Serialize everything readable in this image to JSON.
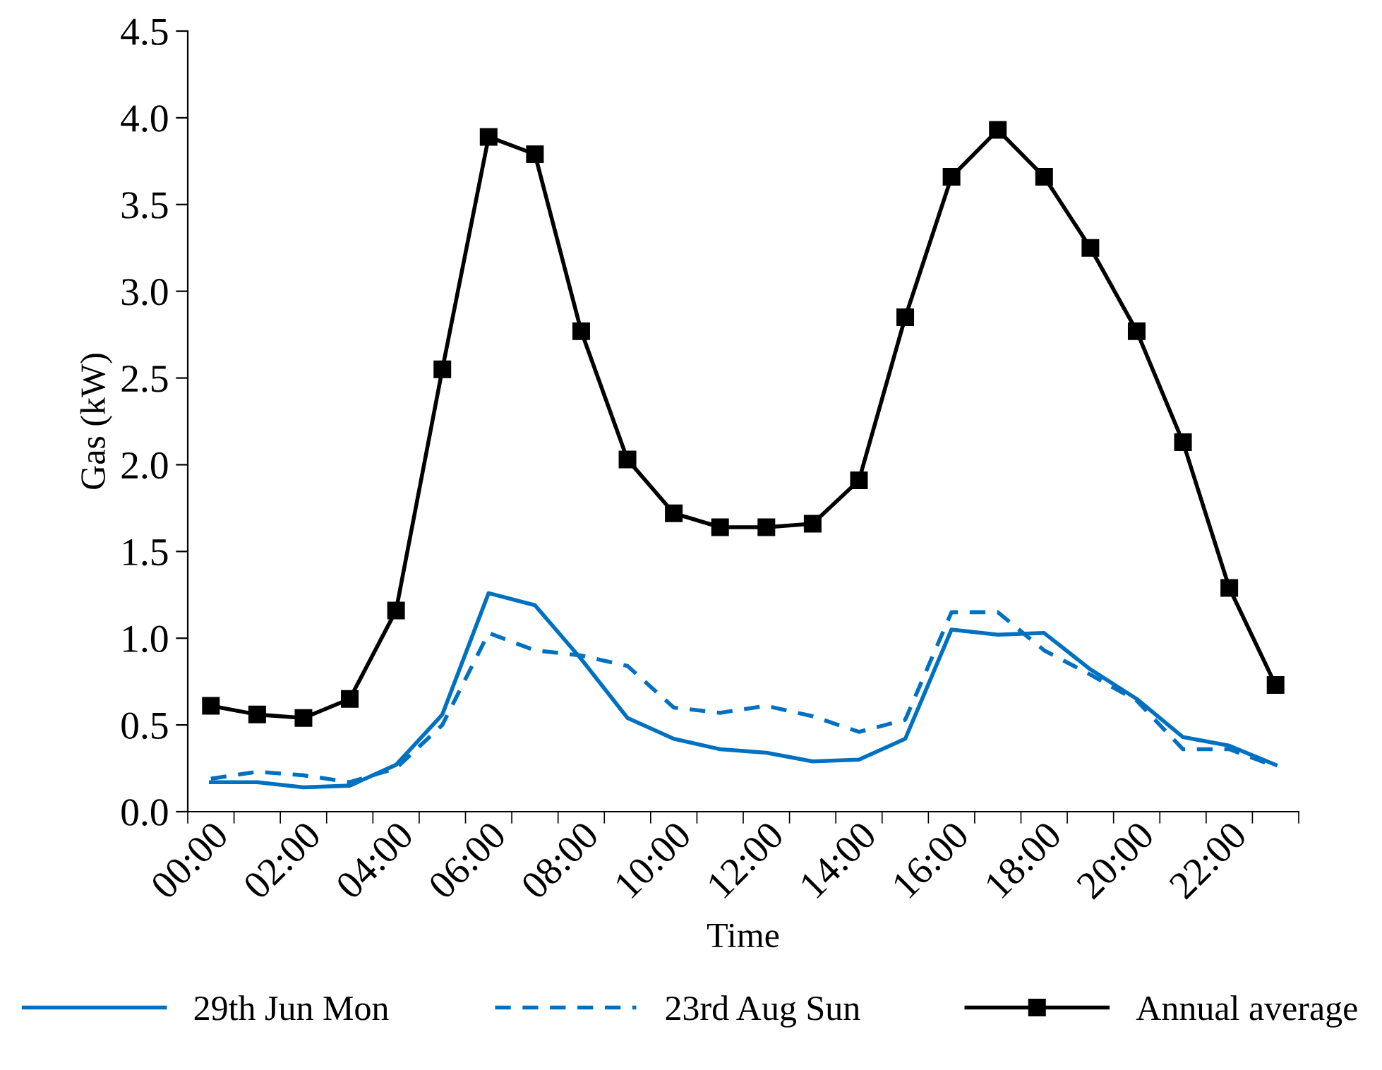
{
  "chart_data": {
    "type": "line",
    "xlabel": "Time",
    "ylabel": "Gas (kW)",
    "categories": [
      "00:00",
      null,
      "02:00",
      null,
      "04:00",
      null,
      "06:00",
      null,
      "08:00",
      null,
      "10:00",
      null,
      "12:00",
      null,
      "14:00",
      null,
      "16:00",
      null,
      "18:00",
      null,
      "20:00",
      null,
      "22:00",
      null
    ],
    "series": [
      {
        "name": "29th Jun Mon",
        "color": "#0070c0",
        "line_style": "solid",
        "marker": "none",
        "values": [
          0.17,
          0.17,
          0.14,
          0.15,
          0.27,
          0.56,
          1.26,
          1.19,
          0.88,
          0.54,
          0.42,
          0.36,
          0.34,
          0.29,
          0.3,
          0.42,
          1.05,
          1.02,
          1.03,
          0.82,
          0.65,
          0.43,
          0.38,
          0.27
        ]
      },
      {
        "name": "23rd Aug Sun",
        "color": "#0070c0",
        "line_style": "dashed",
        "marker": "none",
        "values": [
          0.19,
          0.23,
          0.21,
          0.17,
          0.25,
          0.5,
          1.03,
          0.93,
          0.9,
          0.84,
          0.6,
          0.57,
          0.61,
          0.55,
          0.46,
          0.53,
          1.15,
          1.15,
          0.93,
          0.79,
          0.64,
          0.36,
          0.36,
          0.26
        ]
      },
      {
        "name": "Annual average",
        "color": "#000000",
        "line_style": "solid",
        "marker": "square",
        "values": [
          0.61,
          0.56,
          0.54,
          0.65,
          1.16,
          2.55,
          3.89,
          3.79,
          2.77,
          2.03,
          1.72,
          1.64,
          1.64,
          1.66,
          1.91,
          2.85,
          3.66,
          3.93,
          3.66,
          3.25,
          2.77,
          2.13,
          1.29,
          0.73
        ]
      }
    ],
    "ylim": [
      0,
      4.5
    ],
    "yticks": [
      {
        "value": 0,
        "label": "0.0"
      },
      {
        "value": 0.5,
        "label": "0.5"
      },
      {
        "value": 1,
        "label": "1.0"
      },
      {
        "value": 1.5,
        "label": "1.5"
      },
      {
        "value": 2,
        "label": "2.0"
      },
      {
        "value": 2.5,
        "label": "2.5"
      },
      {
        "value": 3,
        "label": "3.0"
      },
      {
        "value": 3.5,
        "label": "3.5"
      },
      {
        "value": 4,
        "label": "4.0"
      },
      {
        "value": 4.5,
        "label": "4.5"
      }
    ],
    "grid": false,
    "legend": "bottom"
  }
}
